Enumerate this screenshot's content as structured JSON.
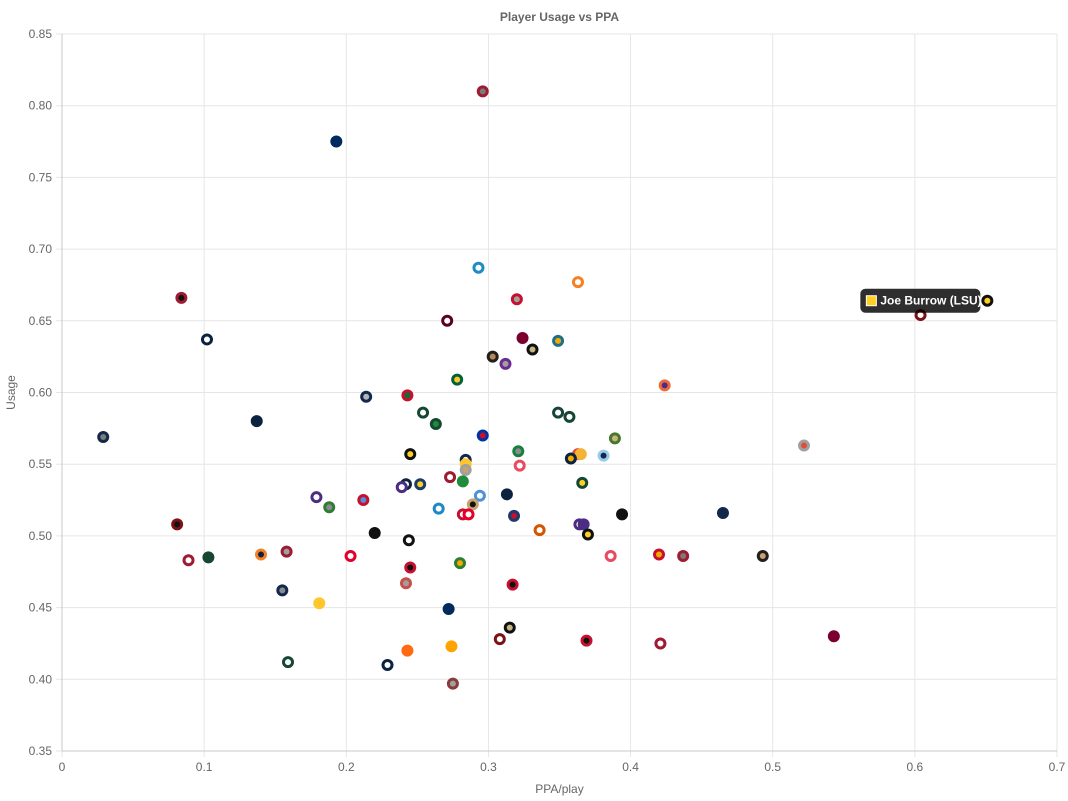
{
  "chart_data": {
    "type": "scatter",
    "title": "Player Usage vs PPA",
    "xlabel": "PPA/play",
    "ylabel": "Usage",
    "xlim": [
      0,
      0.7
    ],
    "ylim": [
      0.35,
      0.85
    ],
    "x_ticks": [
      "0",
      "0.1",
      "0.2",
      "0.3",
      "0.4",
      "0.5",
      "0.6",
      "0.7"
    ],
    "y_ticks": [
      "0.35",
      "0.40",
      "0.45",
      "0.50",
      "0.55",
      "0.60",
      "0.65",
      "0.70",
      "0.75",
      "0.80",
      "0.85"
    ],
    "grid": true,
    "tooltip": {
      "label": "Joe Burrow (LSU)",
      "color": "#fdd023",
      "x": 0.651,
      "y": 0.664
    },
    "points": [
      {
        "x": 0.296,
        "y": 0.81,
        "fill": "#7a7a7a",
        "border": "#9e1b32"
      },
      {
        "x": 0.193,
        "y": 0.775,
        "fill": "#002b5c",
        "border": "#002b5c"
      },
      {
        "x": 0.293,
        "y": 0.687,
        "fill": "#ffffff",
        "border": "#1e8bc3"
      },
      {
        "x": 0.363,
        "y": 0.677,
        "fill": "#ffffff",
        "border": "#f58025"
      },
      {
        "x": 0.084,
        "y": 0.666,
        "fill": "#111111",
        "border": "#9e1b32"
      },
      {
        "x": 0.32,
        "y": 0.665,
        "fill": "#a0a0a0",
        "border": "#c8102e"
      },
      {
        "x": 0.651,
        "y": 0.664,
        "fill": "#fdd023",
        "border": "#111111"
      },
      {
        "x": 0.604,
        "y": 0.654,
        "fill": "#ffffff",
        "border": "#7b1216"
      },
      {
        "x": 0.271,
        "y": 0.65,
        "fill": "#ffffff",
        "border": "#5c0025"
      },
      {
        "x": 0.102,
        "y": 0.637,
        "fill": "#ffffff",
        "border": "#0c2340"
      },
      {
        "x": 0.324,
        "y": 0.638,
        "fill": "#7b0030",
        "border": "#7b0030"
      },
      {
        "x": 0.349,
        "y": 0.636,
        "fill": "#f2a900",
        "border": "#1f6f8b"
      },
      {
        "x": 0.331,
        "y": 0.63,
        "fill": "#c5b783",
        "border": "#111111"
      },
      {
        "x": 0.303,
        "y": 0.625,
        "fill": "#b38b59",
        "border": "#231f20"
      },
      {
        "x": 0.312,
        "y": 0.62,
        "fill": "#a0a0a0",
        "border": "#6a2c91"
      },
      {
        "x": 0.278,
        "y": 0.609,
        "fill": "#ffc72c",
        "border": "#006338"
      },
      {
        "x": 0.424,
        "y": 0.605,
        "fill": "#4b2e83",
        "border": "#ec6b3c"
      },
      {
        "x": 0.243,
        "y": 0.598,
        "fill": "#0a6e3a",
        "border": "#c8102e"
      },
      {
        "x": 0.214,
        "y": 0.597,
        "fill": "#b0b7bc",
        "border": "#13294b"
      },
      {
        "x": 0.349,
        "y": 0.586,
        "fill": "#ffffff",
        "border": "#18453b"
      },
      {
        "x": 0.254,
        "y": 0.586,
        "fill": "#ffffff",
        "border": "#154733"
      },
      {
        "x": 0.357,
        "y": 0.583,
        "fill": "#ffffff",
        "border": "#154733"
      },
      {
        "x": 0.137,
        "y": 0.58,
        "fill": "#0c2340",
        "border": "#0c2340"
      },
      {
        "x": 0.263,
        "y": 0.578,
        "fill": "#1e8c3a",
        "border": "#154733"
      },
      {
        "x": 0.296,
        "y": 0.57,
        "fill": "#c8102e",
        "border": "#0033a0"
      },
      {
        "x": 0.029,
        "y": 0.569,
        "fill": "#7a7a7a",
        "border": "#13294b"
      },
      {
        "x": 0.389,
        "y": 0.568,
        "fill": "#c5b783",
        "border": "#4a7729"
      },
      {
        "x": 0.522,
        "y": 0.563,
        "fill": "#e04e39",
        "border": "#a0a0a0"
      },
      {
        "x": 0.321,
        "y": 0.559,
        "fill": "#8a8d8f",
        "border": "#1a7f3c"
      },
      {
        "x": 0.363,
        "y": 0.557,
        "fill": "#ffffff",
        "border": "#e04e39"
      },
      {
        "x": 0.245,
        "y": 0.557,
        "fill": "#fdd023",
        "border": "#111111"
      },
      {
        "x": 0.365,
        "y": 0.557,
        "fill": "#f5b335",
        "border": "#f5b335"
      },
      {
        "x": 0.381,
        "y": 0.556,
        "fill": "#13294b",
        "border": "#9bcbeb"
      },
      {
        "x": 0.358,
        "y": 0.554,
        "fill": "#f2a900",
        "border": "#0c2340"
      },
      {
        "x": 0.284,
        "y": 0.553,
        "fill": "#ffffff",
        "border": "#13294b"
      },
      {
        "x": 0.284,
        "y": 0.55,
        "fill": "#ffc72c",
        "border": "#ffc72c"
      },
      {
        "x": 0.322,
        "y": 0.549,
        "fill": "#ffffff",
        "border": "#e84a5f"
      },
      {
        "x": 0.284,
        "y": 0.546,
        "fill": "#c5a46e",
        "border": "#a0a0a0"
      },
      {
        "x": 0.273,
        "y": 0.541,
        "fill": "#ffffff",
        "border": "#9e1b32"
      },
      {
        "x": 0.282,
        "y": 0.538,
        "fill": "#1e8c3a",
        "border": "#1e8c3a"
      },
      {
        "x": 0.366,
        "y": 0.537,
        "fill": "#fdd023",
        "border": "#154733"
      },
      {
        "x": 0.252,
        "y": 0.536,
        "fill": "#fdd023",
        "border": "#1a3c6e"
      },
      {
        "x": 0.242,
        "y": 0.536,
        "fill": "#ffffff",
        "border": "#0c2340"
      },
      {
        "x": 0.239,
        "y": 0.534,
        "fill": "#ffffff",
        "border": "#4b2e83"
      },
      {
        "x": 0.313,
        "y": 0.529,
        "fill": "#0c2340",
        "border": "#0c2340"
      },
      {
        "x": 0.294,
        "y": 0.528,
        "fill": "#ffffff",
        "border": "#4b92db"
      },
      {
        "x": 0.179,
        "y": 0.527,
        "fill": "#ffffff",
        "border": "#4b2e83"
      },
      {
        "x": 0.212,
        "y": 0.525,
        "fill": "#4b92db",
        "border": "#c8102e"
      },
      {
        "x": 0.289,
        "y": 0.522,
        "fill": "#111111",
        "border": "#c5a46e"
      },
      {
        "x": 0.188,
        "y": 0.52,
        "fill": "#8a8d8f",
        "border": "#2e7d32"
      },
      {
        "x": 0.265,
        "y": 0.519,
        "fill": "#ffffff",
        "border": "#1e88c7"
      },
      {
        "x": 0.282,
        "y": 0.515,
        "fill": "#ffffff",
        "border": "#c8102e"
      },
      {
        "x": 0.286,
        "y": 0.515,
        "fill": "#ffffff",
        "border": "#e4002b"
      },
      {
        "x": 0.394,
        "y": 0.515,
        "fill": "#111111",
        "border": "#111111"
      },
      {
        "x": 0.465,
        "y": 0.516,
        "fill": "#13294b",
        "border": "#13294b"
      },
      {
        "x": 0.318,
        "y": 0.514,
        "fill": "#c8102e",
        "border": "#1a3c6e"
      },
      {
        "x": 0.081,
        "y": 0.508,
        "fill": "#111111",
        "border": "#7b1216"
      },
      {
        "x": 0.364,
        "y": 0.508,
        "fill": "#ffffff",
        "border": "#4b2e83"
      },
      {
        "x": 0.367,
        "y": 0.508,
        "fill": "#4b2e83",
        "border": "#4b2e83"
      },
      {
        "x": 0.336,
        "y": 0.504,
        "fill": "#ffffff",
        "border": "#d45500"
      },
      {
        "x": 0.22,
        "y": 0.502,
        "fill": "#111111",
        "border": "#111111"
      },
      {
        "x": 0.37,
        "y": 0.501,
        "fill": "#fdd023",
        "border": "#111111"
      },
      {
        "x": 0.244,
        "y": 0.497,
        "fill": "#ffffff",
        "border": "#111111"
      },
      {
        "x": 0.158,
        "y": 0.489,
        "fill": "#a0a0a0",
        "border": "#9e1b32"
      },
      {
        "x": 0.14,
        "y": 0.487,
        "fill": "#0c2340",
        "border": "#f58025"
      },
      {
        "x": 0.42,
        "y": 0.487,
        "fill": "#f2a900",
        "border": "#c8102e"
      },
      {
        "x": 0.203,
        "y": 0.486,
        "fill": "#ffffff",
        "border": "#e4002b"
      },
      {
        "x": 0.386,
        "y": 0.486,
        "fill": "#ffffff",
        "border": "#e84a5f"
      },
      {
        "x": 0.437,
        "y": 0.486,
        "fill": "#7a7a7a",
        "border": "#9e1b32"
      },
      {
        "x": 0.493,
        "y": 0.486,
        "fill": "#c5a46e",
        "border": "#231f20"
      },
      {
        "x": 0.103,
        "y": 0.485,
        "fill": "#154733",
        "border": "#154733"
      },
      {
        "x": 0.089,
        "y": 0.483,
        "fill": "#ffffff",
        "border": "#9e1b32"
      },
      {
        "x": 0.28,
        "y": 0.481,
        "fill": "#f2a900",
        "border": "#2e7d32"
      },
      {
        "x": 0.245,
        "y": 0.478,
        "fill": "#111111",
        "border": "#c8102e"
      },
      {
        "x": 0.242,
        "y": 0.467,
        "fill": "#a0a0a0",
        "border": "#c8504a"
      },
      {
        "x": 0.317,
        "y": 0.466,
        "fill": "#111111",
        "border": "#c8102e"
      },
      {
        "x": 0.155,
        "y": 0.462,
        "fill": "#8a8d8f",
        "border": "#13294b"
      },
      {
        "x": 0.181,
        "y": 0.453,
        "fill": "#ffc72c",
        "border": "#ffc72c"
      },
      {
        "x": 0.272,
        "y": 0.449,
        "fill": "#002b5c",
        "border": "#002b5c"
      },
      {
        "x": 0.315,
        "y": 0.436,
        "fill": "#c5b783",
        "border": "#111111"
      },
      {
        "x": 0.543,
        "y": 0.43,
        "fill": "#7b0030",
        "border": "#7b0030"
      },
      {
        "x": 0.308,
        "y": 0.428,
        "fill": "#ffffff",
        "border": "#7b1216"
      },
      {
        "x": 0.369,
        "y": 0.427,
        "fill": "#111111",
        "border": "#c8102e"
      },
      {
        "x": 0.421,
        "y": 0.425,
        "fill": "#ffffff",
        "border": "#9e1b32"
      },
      {
        "x": 0.274,
        "y": 0.423,
        "fill": "#ffa300",
        "border": "#ffa300"
      },
      {
        "x": 0.243,
        "y": 0.42,
        "fill": "#ff6a13",
        "border": "#ff6a13"
      },
      {
        "x": 0.159,
        "y": 0.412,
        "fill": "#ffffff",
        "border": "#154733"
      },
      {
        "x": 0.229,
        "y": 0.41,
        "fill": "#ffffff",
        "border": "#0c2340"
      },
      {
        "x": 0.275,
        "y": 0.397,
        "fill": "#a0a0a0",
        "border": "#8a3b3b"
      }
    ]
  }
}
